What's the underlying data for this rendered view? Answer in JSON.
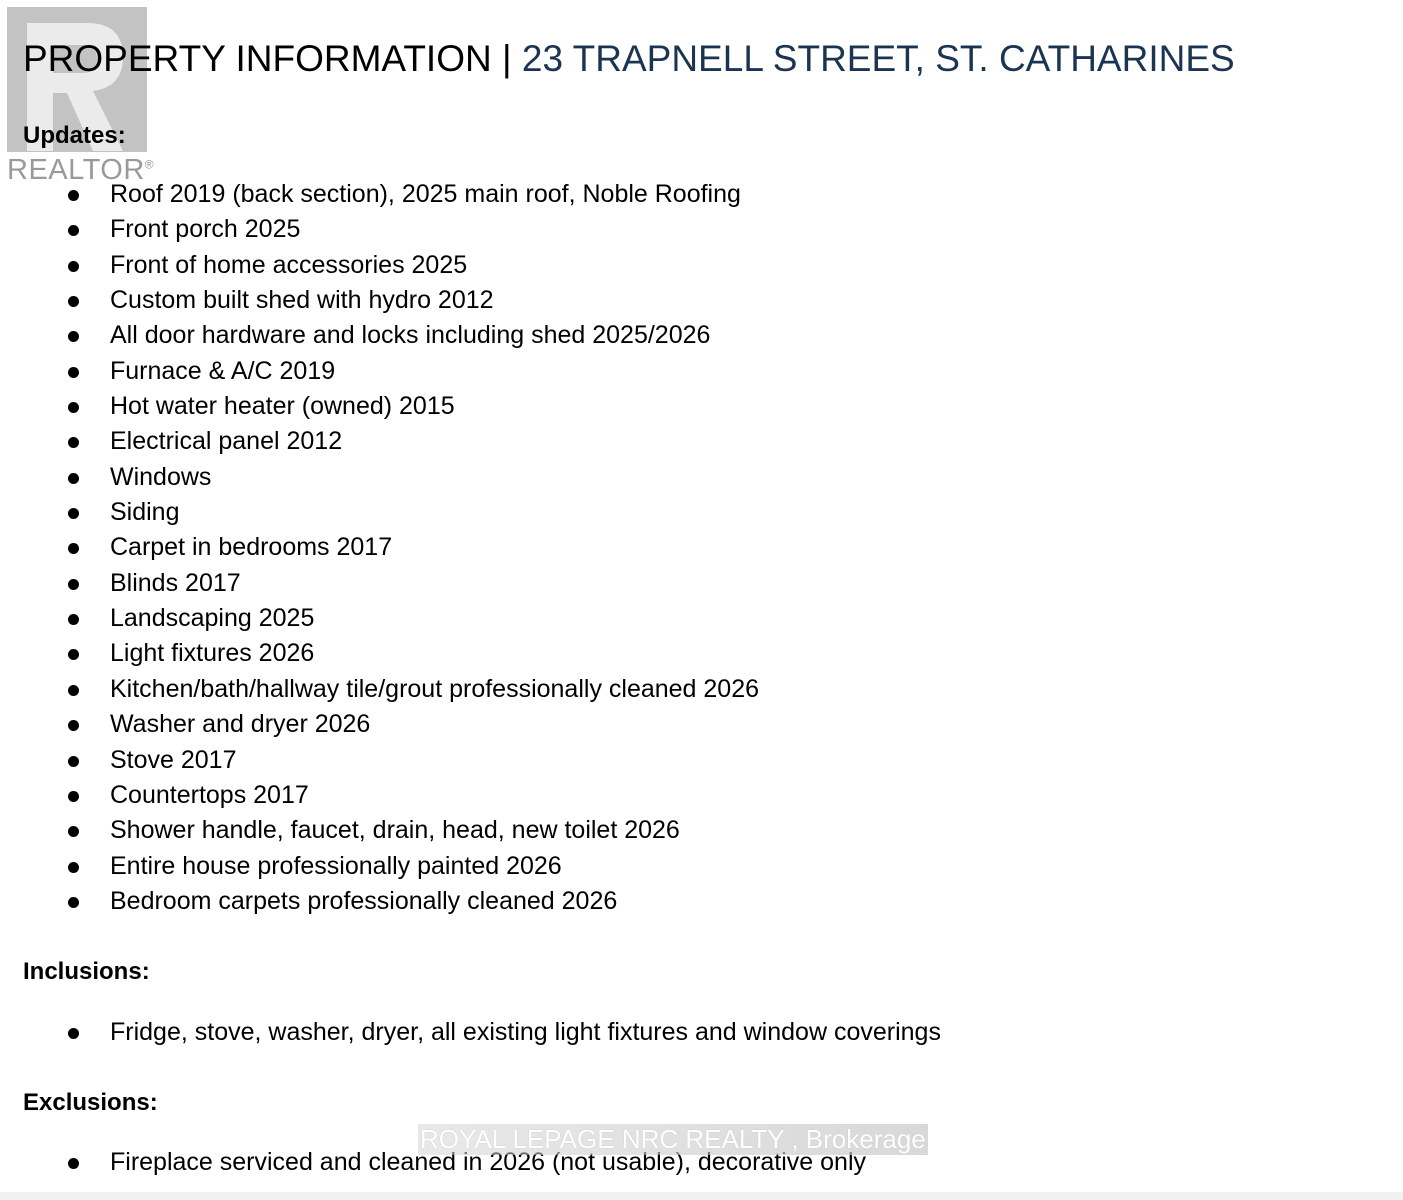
{
  "logo": {
    "text": "REALTOR",
    "mark": "®"
  },
  "title": {
    "prefix": "PROPERTY INFORMATION | ",
    "address": "23 TRAPNELL STREET, ST. CATHARINES"
  },
  "updates": {
    "heading": "Updates:",
    "items": [
      "Roof 2019 (back section), 2025 main roof, Noble Roofing",
      "Front porch 2025",
      "Front of home accessories 2025",
      "Custom built shed with hydro 2012",
      "All door hardware and locks including shed 2025/2026",
      "Furnace & A/C 2019",
      "Hot water heater (owned) 2015",
      "Electrical panel 2012",
      "Windows",
      "Siding",
      "Carpet in bedrooms 2017",
      "Blinds 2017",
      "Landscaping 2025",
      "Light fixtures 2026",
      "Kitchen/bath/hallway tile/grout professionally cleaned 2026",
      "Washer and dryer 2026",
      "Stove 2017",
      "Countertops 2017",
      "Shower handle, faucet, drain, head, new toilet 2026",
      "Entire house professionally painted 2026",
      "Bedroom carpets professionally cleaned 2026"
    ]
  },
  "inclusions": {
    "heading": "Inclusions:",
    "items": [
      "Fridge, stove, washer, dryer, all existing light fixtures and window coverings"
    ]
  },
  "exclusions": {
    "heading": "Exclusions:",
    "items": [
      "Fireplace serviced and cleaned in 2026 (not usable), decorative only"
    ]
  },
  "watermark": "ROYAL LEPAGE NRC REALTY , Brokerage"
}
